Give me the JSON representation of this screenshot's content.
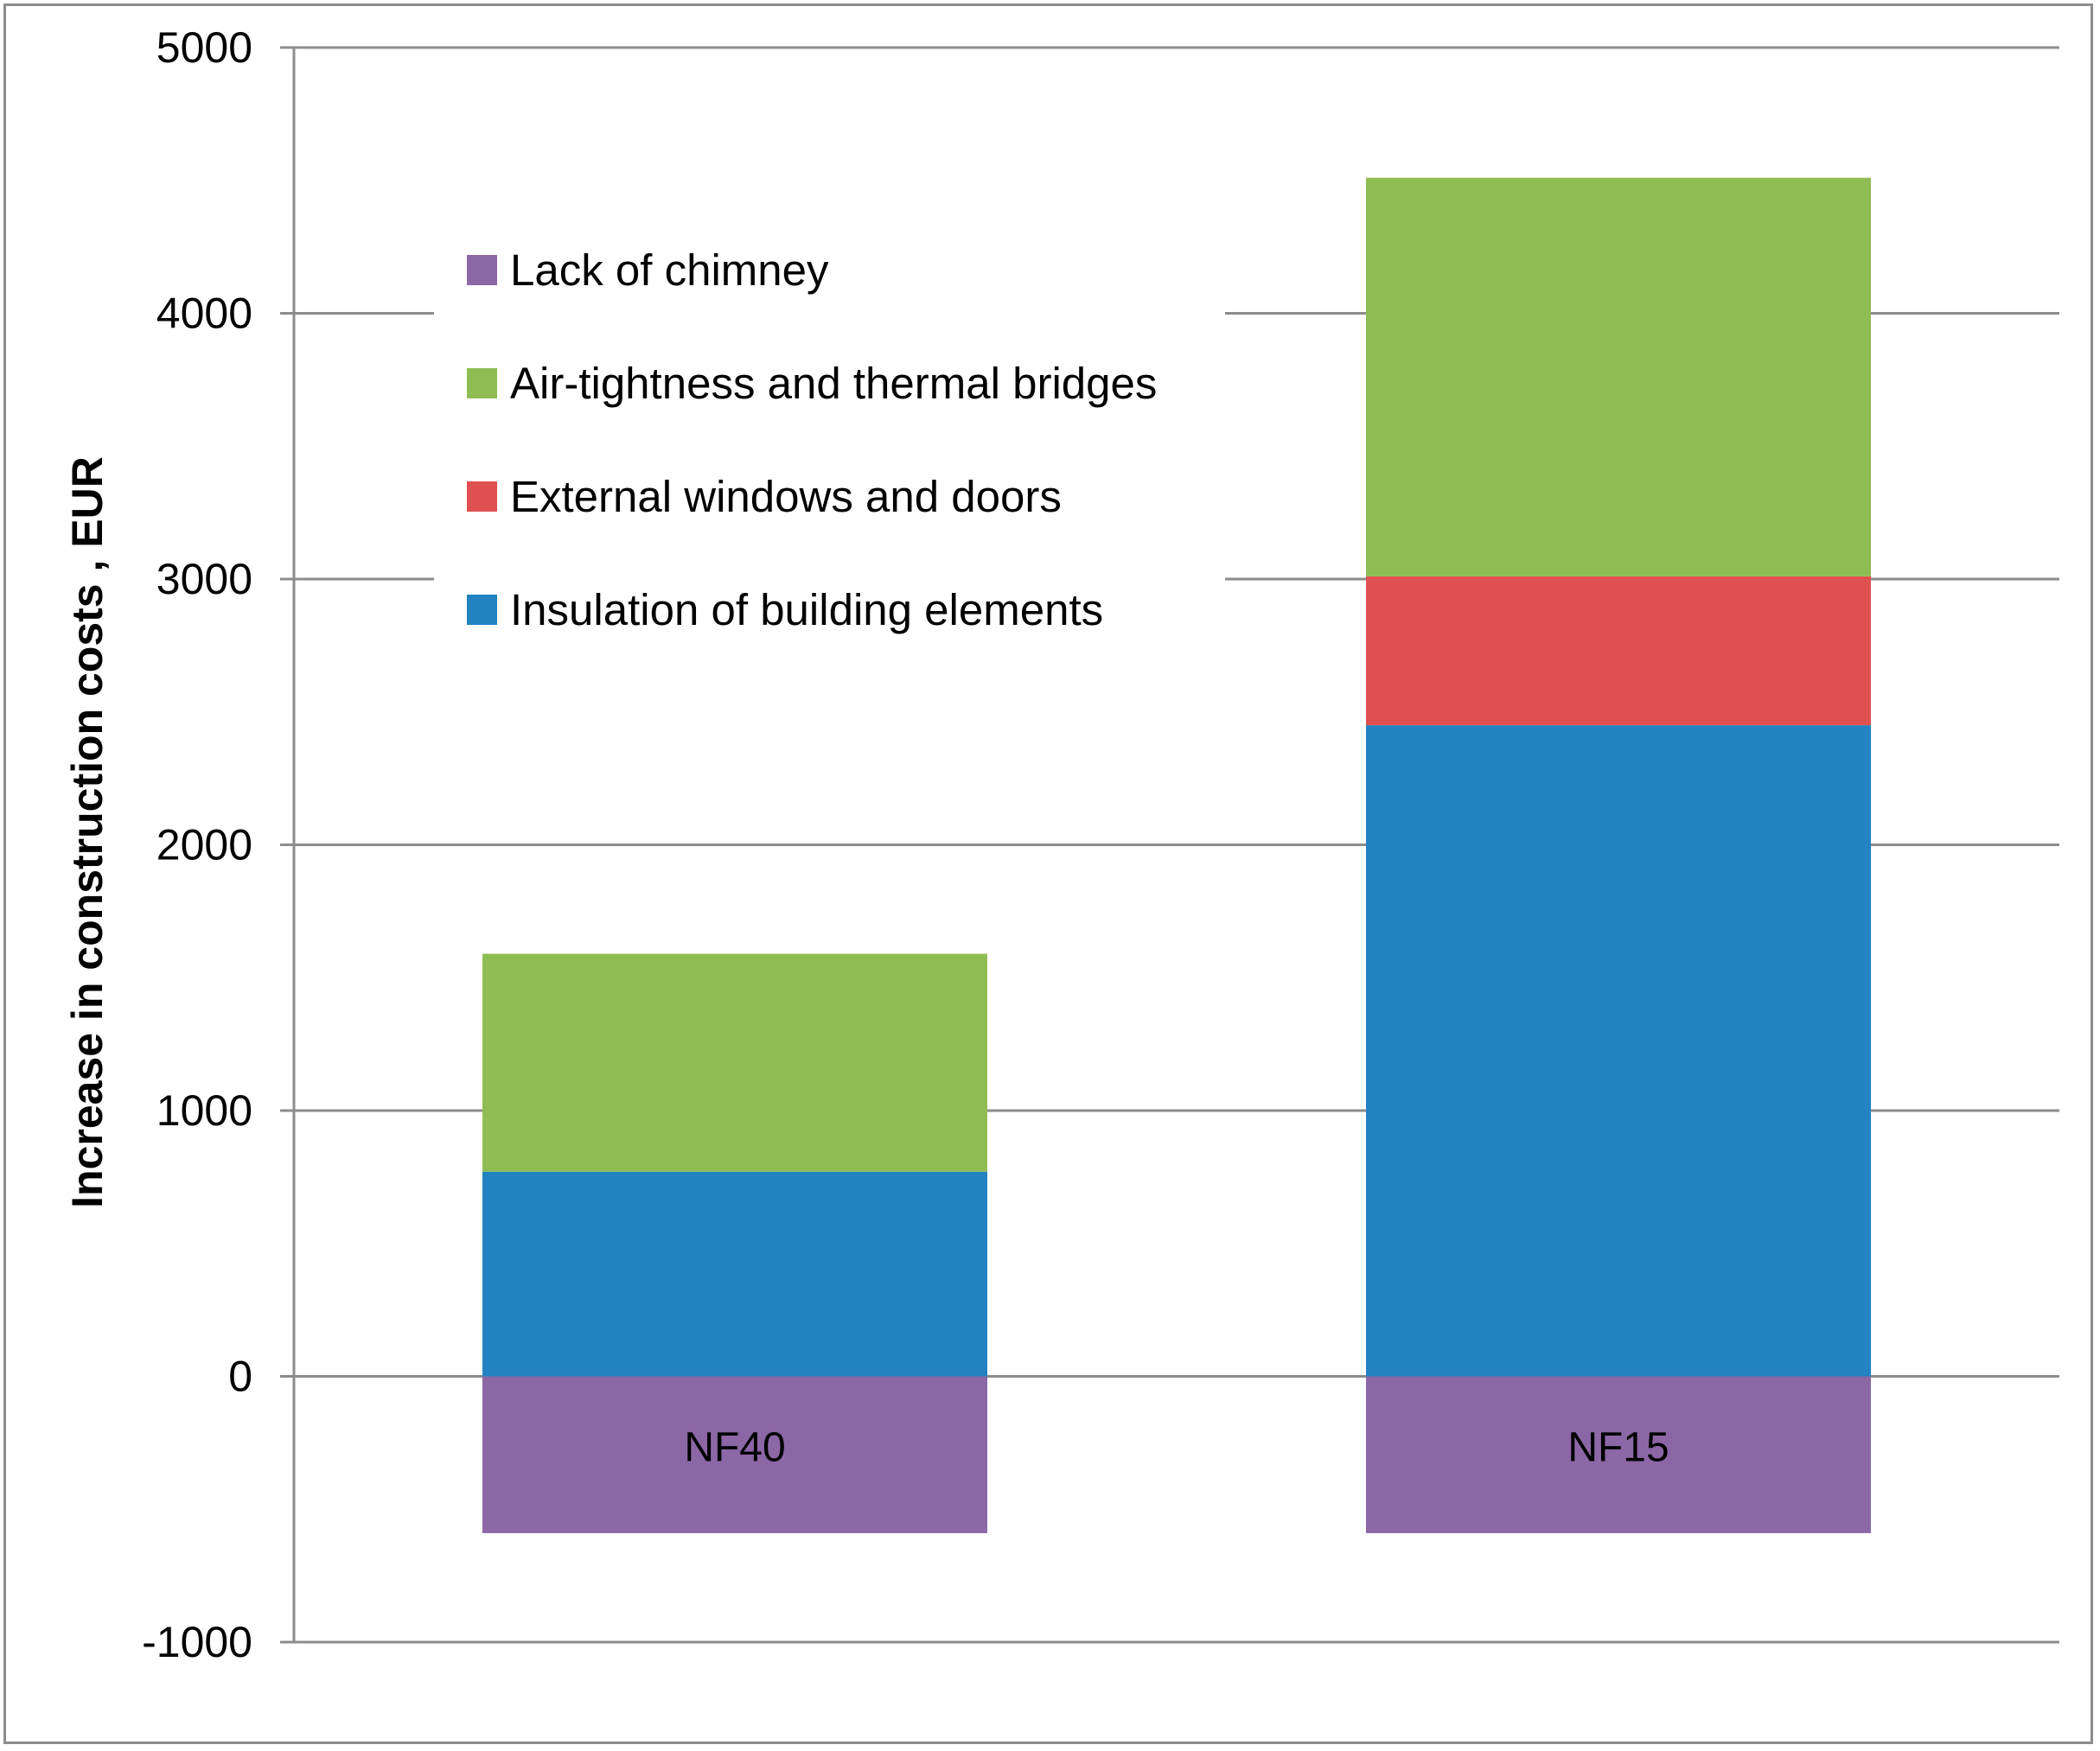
{
  "chart_data": {
    "type": "bar",
    "stacked": true,
    "title": "",
    "xlabel": "",
    "ylabel": "Increase in construction costs , EUR",
    "ylim": [
      -1000,
      5000
    ],
    "yticks": [
      5000,
      4000,
      3000,
      2000,
      1000,
      0,
      -1000
    ],
    "grid": true,
    "legend_position": "top-left",
    "categories": [
      "NF40",
      "NF15"
    ],
    "series": [
      {
        "name": "Insulation of building elements",
        "color": "#2382c1",
        "values": [
          770,
          2450
        ]
      },
      {
        "name": "External windows and doors",
        "color": "#df5150",
        "values": [
          0,
          560
        ]
      },
      {
        "name": "Air-tightness and thermal bridges",
        "color": "#8fbd53",
        "values": [
          820,
          1500
        ]
      },
      {
        "name": "Lack of chimney",
        "color": "#8c67a6",
        "values": [
          -590,
          -590
        ]
      }
    ],
    "legend_order": [
      "Lack of chimney",
      "Air-tightness and thermal bridges",
      "External windows and doors",
      "Insulation of building elements"
    ]
  }
}
